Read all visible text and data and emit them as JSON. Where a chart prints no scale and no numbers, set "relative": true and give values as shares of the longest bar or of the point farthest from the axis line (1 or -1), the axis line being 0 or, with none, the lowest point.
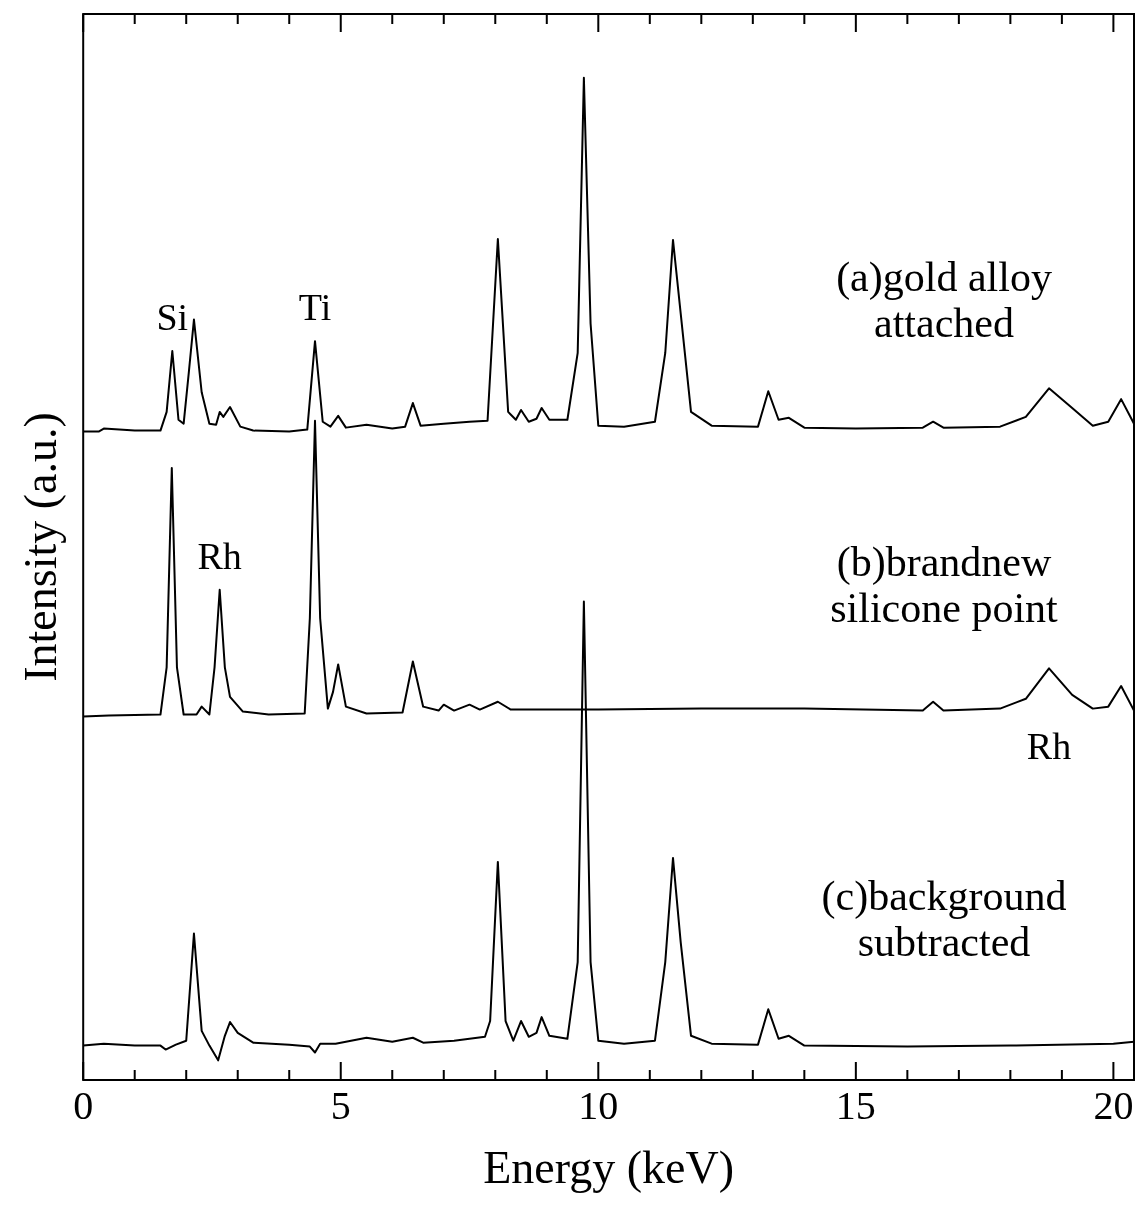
{
  "chart_data": {
    "type": "line",
    "relative": true,
    "xlabel": "Energy (keV)",
    "ylabel": "Intensity (a.u.)",
    "xlim": [
      0,
      20.4
    ],
    "xticks": [
      0,
      {
        "value": 1,
        "label": null
      },
      {
        "value": 2,
        "label": null
      },
      {
        "value": 3,
        "label": null
      },
      {
        "value": 4,
        "label": null
      },
      5,
      {
        "value": 6,
        "label": null
      },
      {
        "value": 7,
        "label": null
      },
      {
        "value": 8,
        "label": null
      },
      {
        "value": 9,
        "label": null
      },
      10,
      {
        "value": 11,
        "label": null
      },
      {
        "value": 12,
        "label": null
      },
      {
        "value": 13,
        "label": null
      },
      {
        "value": 14,
        "label": null
      },
      15,
      {
        "value": 16,
        "label": null
      },
      {
        "value": 17,
        "label": null
      },
      {
        "value": 18,
        "label": null
      },
      {
        "value": 19,
        "label": null
      },
      20
    ],
    "grid": false,
    "legend": false,
    "marker": "none",
    "series": [
      {
        "name": "(a)gold alloy attached",
        "color": "#000000",
        "x": [
          0,
          0.3,
          0.4,
          1.0,
          1.5,
          1.62,
          1.73,
          1.85,
          1.95,
          2.05,
          2.15,
          2.3,
          2.45,
          2.58,
          2.65,
          2.72,
          2.85,
          3.05,
          3.3,
          4.0,
          4.35,
          4.5,
          4.65,
          4.8,
          4.95,
          5.1,
          5.5,
          6.0,
          6.25,
          6.4,
          6.55,
          7.0,
          7.5,
          7.85,
          8.05,
          8.25,
          8.4,
          8.5,
          8.65,
          8.8,
          8.9,
          9.05,
          9.4,
          9.6,
          9.72,
          9.85,
          10.0,
          10.5,
          11.1,
          11.3,
          11.45,
          11.6,
          11.8,
          12.2,
          13.1,
          13.3,
          13.5,
          13.7,
          14.0,
          15,
          16.3,
          16.5,
          16.7,
          17.8,
          18.3,
          18.75,
          19.2,
          19.6,
          19.9,
          20.15,
          20.4
        ],
        "values": [
          0.64,
          0.64,
          0.643,
          0.641,
          0.641,
          0.66,
          0.722,
          0.652,
          0.648,
          0.7,
          0.754,
          0.68,
          0.648,
          0.647,
          0.66,
          0.655,
          0.665,
          0.645,
          0.641,
          0.64,
          0.642,
          0.732,
          0.65,
          0.645,
          0.656,
          0.644,
          0.647,
          0.643,
          0.645,
          0.669,
          0.646,
          0.648,
          0.65,
          0.651,
          0.836,
          0.66,
          0.652,
          0.662,
          0.65,
          0.653,
          0.664,
          0.652,
          0.652,
          0.72,
          1.0,
          0.75,
          0.646,
          0.645,
          0.65,
          0.72,
          0.835,
          0.76,
          0.66,
          0.646,
          0.645,
          0.681,
          0.652,
          0.654,
          0.644,
          0.643,
          0.644,
          0.65,
          0.644,
          0.645,
          0.655,
          0.684,
          0.664,
          0.646,
          0.65,
          0.673,
          0.648
        ]
      },
      {
        "name": "(b)brandnew silicone point",
        "color": "#000000",
        "x": [
          0,
          0.5,
          1.5,
          1.62,
          1.72,
          1.82,
          1.95,
          2.2,
          2.3,
          2.45,
          2.55,
          2.65,
          2.75,
          2.85,
          3.1,
          3.6,
          4.3,
          4.4,
          4.5,
          4.6,
          4.75,
          4.85,
          4.95,
          5.1,
          5.5,
          6.2,
          6.4,
          6.6,
          6.9,
          7.0,
          7.2,
          7.5,
          7.7,
          8.05,
          8.3,
          10,
          12,
          14,
          16.3,
          16.5,
          16.7,
          17.8,
          18.3,
          18.75,
          19.2,
          19.6,
          19.9,
          20.15,
          20.4
        ],
        "values": [
          0.35,
          0.351,
          0.352,
          0.4,
          0.603,
          0.4,
          0.352,
          0.352,
          0.36,
          0.352,
          0.4,
          0.479,
          0.4,
          0.37,
          0.355,
          0.352,
          0.353,
          0.45,
          0.651,
          0.45,
          0.358,
          0.375,
          0.403,
          0.36,
          0.353,
          0.354,
          0.406,
          0.36,
          0.356,
          0.362,
          0.356,
          0.362,
          0.357,
          0.365,
          0.357,
          0.357,
          0.358,
          0.358,
          0.356,
          0.365,
          0.356,
          0.358,
          0.368,
          0.399,
          0.372,
          0.358,
          0.36,
          0.381,
          0.356
        ]
      },
      {
        "name": "(c)background subtracted",
        "color": "#000000",
        "x": [
          0,
          0.4,
          1.0,
          1.5,
          1.6,
          1.8,
          2.0,
          2.15,
          2.3,
          2.45,
          2.62,
          2.75,
          2.85,
          3.0,
          3.3,
          4.0,
          4.4,
          4.5,
          4.6,
          4.9,
          5.5,
          6.0,
          6.4,
          6.6,
          7.2,
          7.8,
          7.9,
          8.05,
          8.2,
          8.35,
          8.5,
          8.65,
          8.8,
          8.9,
          9.05,
          9.4,
          9.6,
          9.72,
          9.85,
          10.0,
          10.5,
          11.1,
          11.3,
          11.45,
          11.6,
          11.8,
          12.2,
          13.1,
          13.3,
          13.5,
          13.7,
          14.0,
          16,
          18,
          20,
          20.4
        ],
        "values": [
          0.015,
          0.017,
          0.015,
          0.015,
          0.011,
          0.016,
          0.02,
          0.129,
          0.03,
          0.015,
          0.0,
          0.025,
          0.039,
          0.028,
          0.018,
          0.016,
          0.014,
          0.008,
          0.017,
          0.017,
          0.023,
          0.019,
          0.023,
          0.018,
          0.02,
          0.024,
          0.04,
          0.202,
          0.04,
          0.02,
          0.04,
          0.024,
          0.028,
          0.044,
          0.025,
          0.022,
          0.1,
          0.467,
          0.1,
          0.02,
          0.017,
          0.02,
          0.1,
          0.206,
          0.12,
          0.025,
          0.017,
          0.016,
          0.052,
          0.022,
          0.025,
          0.015,
          0.014,
          0.015,
          0.017,
          0.019
        ]
      }
    ],
    "annotations": [
      {
        "text": "Si",
        "x": 1.73,
        "y": 0.722
      },
      {
        "text": "Ti",
        "x": 4.5,
        "y": 0.732
      },
      {
        "text": "Rh",
        "x": 2.65,
        "y": 0.479
      },
      {
        "text": "Rh",
        "x": 18.75,
        "y": 0.399
      }
    ]
  }
}
